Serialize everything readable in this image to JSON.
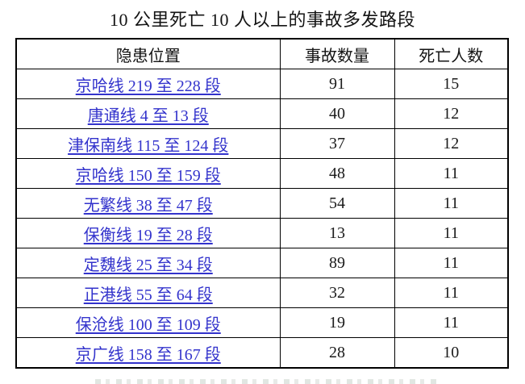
{
  "title": "10 公里死亡 10 人以上的事故多发路段",
  "table": {
    "headers": {
      "location": "隐患位置",
      "accidents": "事故数量",
      "deaths": "死亡人数"
    },
    "rows": [
      {
        "location": "京哈线 219 至 228 段",
        "accidents": "91",
        "deaths": "15"
      },
      {
        "location": "唐通线 4 至 13 段",
        "accidents": "40",
        "deaths": "12"
      },
      {
        "location": "津保南线 115 至 124 段",
        "accidents": "37",
        "deaths": "12"
      },
      {
        "location": "京哈线 150 至 159 段",
        "accidents": "48",
        "deaths": "11"
      },
      {
        "location": "无繁线 38 至 47 段",
        "accidents": "54",
        "deaths": "11"
      },
      {
        "location": "保衡线 19 至 28 段",
        "accidents": "13",
        "deaths": "11"
      },
      {
        "location": "定魏线 25 至 34 段",
        "accidents": "89",
        "deaths": "11"
      },
      {
        "location": "正港线 55 至 64 段",
        "accidents": "32",
        "deaths": "11"
      },
      {
        "location": "保沧线 100 至 109 段",
        "accidents": "19",
        "deaths": "11"
      },
      {
        "location": "京广线 158 至 167 段",
        "accidents": "28",
        "deaths": "10"
      }
    ]
  },
  "colors": {
    "link_blue": "#3333cc",
    "border_black": "#000000",
    "text_black": "#141414"
  }
}
